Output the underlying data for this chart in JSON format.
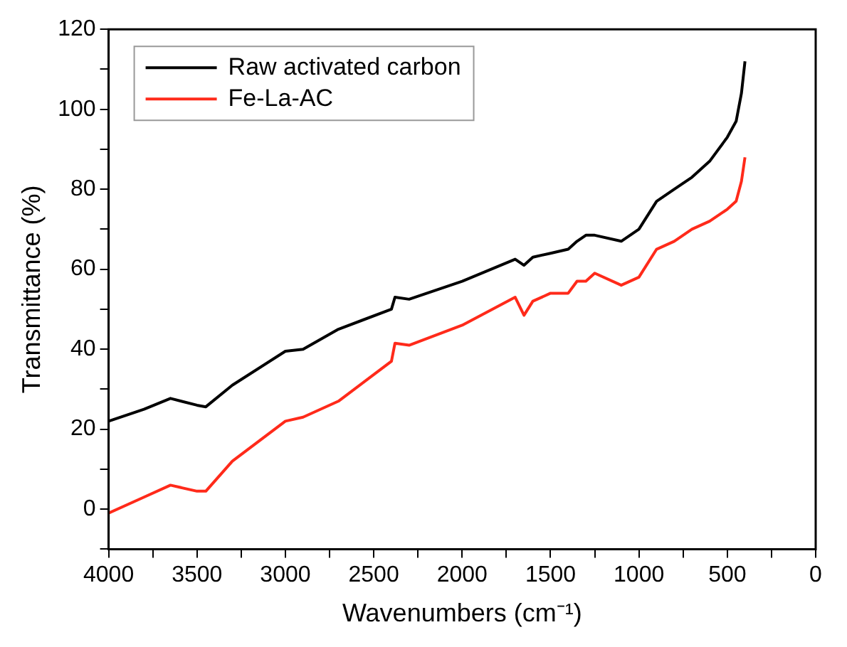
{
  "chart_data": {
    "type": "line",
    "xlabel": "Wavenumbers (cm⁻¹)",
    "ylabel": "Transmittance (%)",
    "x": [
      4000,
      3800,
      3650,
      3500,
      3450,
      3300,
      3000,
      2900,
      2700,
      2400,
      2380,
      2300,
      2000,
      1700,
      1650,
      1600,
      1500,
      1400,
      1350,
      1300,
      1250,
      1100,
      1000,
      900,
      800,
      700,
      600,
      500,
      450,
      420,
      400
    ],
    "series": [
      {
        "name": "Raw activated carbon",
        "color": "#000000",
        "values": [
          22,
          25,
          27.7,
          26,
          25.6,
          31,
          39.5,
          40,
          45,
          50,
          53,
          52.5,
          57,
          62.5,
          61,
          63,
          64,
          65,
          67,
          68.5,
          68.5,
          67,
          70,
          77,
          80,
          83,
          87,
          93,
          97,
          104,
          112
        ]
      },
      {
        "name": "Fe-La-AC",
        "color": "#ff2a1a",
        "values": [
          -1,
          3,
          6,
          4.5,
          4.5,
          12,
          22,
          23,
          27,
          37,
          41.5,
          41,
          46,
          53,
          48.5,
          52,
          54,
          54,
          57,
          57,
          59,
          56,
          58,
          65,
          67,
          70,
          72,
          75,
          77,
          82,
          88
        ]
      }
    ],
    "xlim": [
      4000,
      0
    ],
    "ylim": [
      -10,
      120
    ],
    "xticks": [
      4000,
      {
        "value": 3750,
        "label": null
      },
      3500,
      {
        "value": 3250,
        "label": null
      },
      3000,
      {
        "value": 2750,
        "label": null
      },
      2500,
      {
        "value": 2250,
        "label": null
      },
      2000,
      {
        "value": 1750,
        "label": null
      },
      1500,
      {
        "value": 1250,
        "label": null
      },
      1000,
      {
        "value": 750,
        "label": null
      },
      500,
      {
        "value": 250,
        "label": null
      },
      0
    ],
    "yticks": [
      {
        "value": -10,
        "label": null
      },
      0,
      {
        "value": 10,
        "label": null
      },
      20,
      {
        "value": 30,
        "label": null
      },
      40,
      {
        "value": 50,
        "label": null
      },
      60,
      {
        "value": 70,
        "label": null
      },
      80,
      {
        "value": 90,
        "label": null
      },
      100,
      {
        "value": 110,
        "label": null
      },
      120
    ],
    "legend": "top left",
    "grid": false,
    "marker": "none",
    "line_style": "solid"
  }
}
